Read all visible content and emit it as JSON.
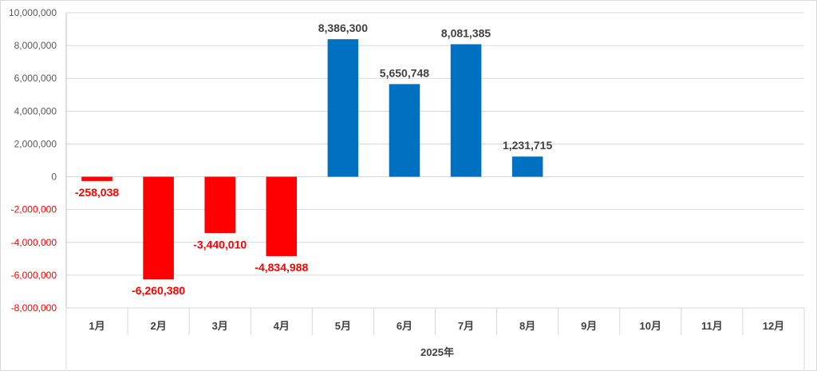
{
  "chart_data": {
    "type": "bar",
    "categories": [
      "1月",
      "2月",
      "3月",
      "4月",
      "5月",
      "6月",
      "7月",
      "8月",
      "9月",
      "10月",
      "11月",
      "12月"
    ],
    "values": [
      -258038,
      -6260380,
      -3440010,
      -4834988,
      8386300,
      5650748,
      8081385,
      1231715,
      null,
      null,
      null,
      null
    ],
    "data_labels": [
      "-258,038",
      "-6,260,380",
      "-3,440,010",
      "-4,834,988",
      "8,386,300",
      "5,650,748",
      "8,081,385",
      "1,231,715",
      "",
      "",
      "",
      ""
    ],
    "y_ticks": [
      10000000,
      8000000,
      6000000,
      4000000,
      2000000,
      0,
      -2000000,
      -4000000,
      -6000000,
      -8000000
    ],
    "y_tick_labels": [
      "10,000,000",
      "8,000,000",
      "6,000,000",
      "4,000,000",
      "2,000,000",
      "0",
      "-2,000,000",
      "-4,000,000",
      "-6,000,000",
      "-8,000,000"
    ],
    "ylim": [
      -8000000,
      10000000
    ],
    "x_group_label": "2025年",
    "grid": true,
    "legend": "none",
    "colors": {
      "positive": "#0070c0",
      "negative": "#ff0000",
      "positive_label": "#404040",
      "negative_label": "#ff0000",
      "positive_tick": "#595959",
      "negative_tick": "#ff0000",
      "gridline": "#d9d9d9",
      "axis": "#bfbfbf"
    }
  }
}
